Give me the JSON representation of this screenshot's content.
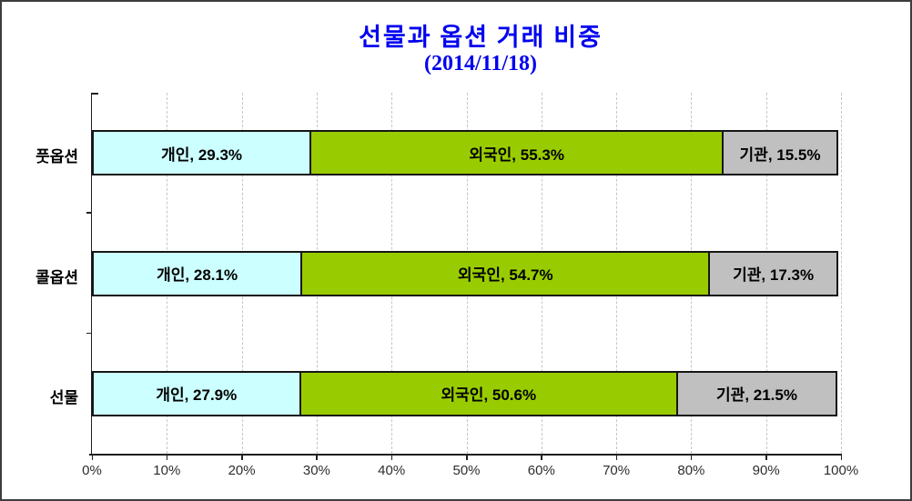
{
  "title": {
    "line1": "선물과 옵션 거래 비중",
    "line2": "(2014/11/18)",
    "color": "#0000f0"
  },
  "chart_data": {
    "type": "bar",
    "orientation": "horizontal",
    "stacked": true,
    "title": "선물과 옵션 거래 비중 (2014/11/18)",
    "categories": [
      "풋옵션",
      "콜옵션",
      "선물"
    ],
    "series": [
      {
        "name": "개인",
        "color": "#ccffff",
        "values": [
          29.3,
          28.1,
          27.9
        ]
      },
      {
        "name": "외국인",
        "color": "#99cc00",
        "values": [
          55.3,
          54.7,
          50.6
        ]
      },
      {
        "name": "기관",
        "color": "#c0c0c0",
        "values": [
          15.5,
          17.3,
          21.5
        ]
      }
    ],
    "segment_labels": [
      [
        "개인, 29.3%",
        "외국인, 55.3%",
        "기관, 15.5%"
      ],
      [
        "개인, 28.1%",
        "외국인, 54.7%",
        "기관, 17.3%"
      ],
      [
        "개인, 27.9%",
        "외국인, 50.6%",
        "기관, 21.5%"
      ]
    ],
    "x_ticks": [
      "0%",
      "10%",
      "20%",
      "30%",
      "40%",
      "50%",
      "60%",
      "70%",
      "80%",
      "90%",
      "100%"
    ],
    "xlim": [
      0,
      100
    ],
    "xlabel": "",
    "ylabel": "",
    "grid": "vertical-dashed",
    "legend": "none"
  }
}
